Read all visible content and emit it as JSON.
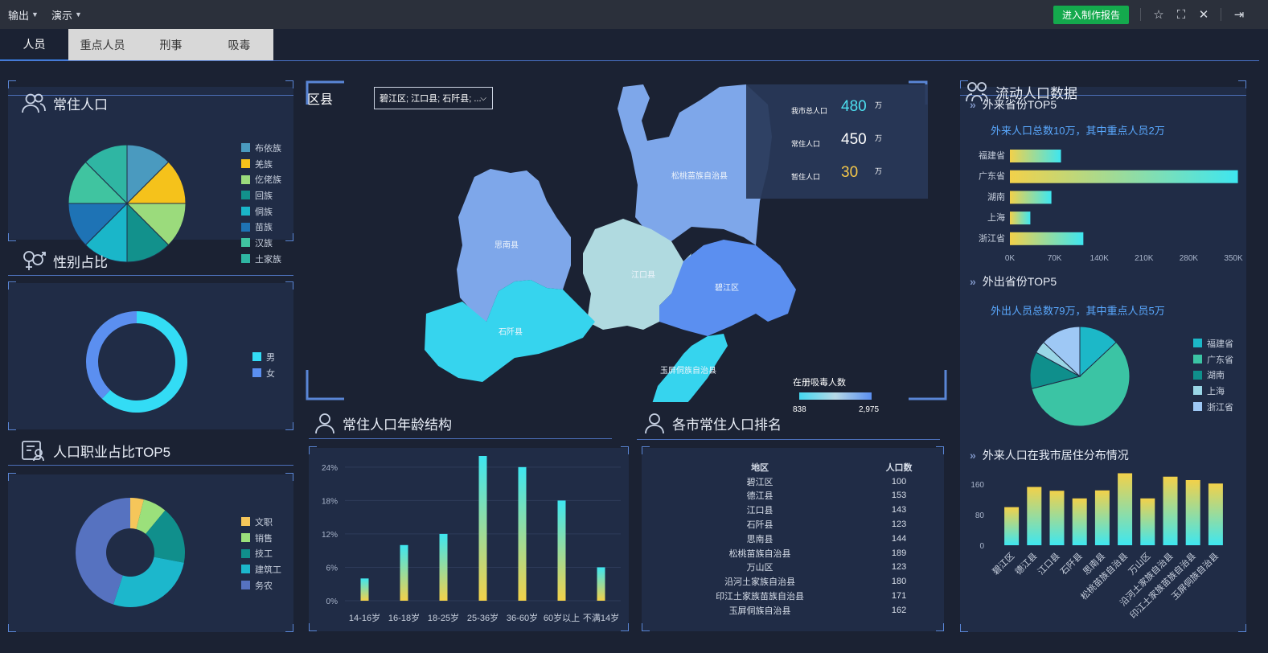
{
  "topbar": {
    "menus": [
      "输出",
      "演示"
    ],
    "report_button": "进入制作报告"
  },
  "tabs": [
    "人员",
    "重点人员",
    "刑事",
    "吸毒"
  ],
  "left": {
    "resident_title": "常住人口",
    "resident_legend": [
      "布依族",
      "羌族",
      "仡佬族",
      "回族",
      "侗族",
      "苗族",
      "汉族",
      "土家族"
    ],
    "resident_colors": [
      "#4a9abf",
      "#f5c21b",
      "#9bdb7c",
      "#12918c",
      "#1ab6c9",
      "#1e73b5",
      "#40c4a0",
      "#2fb6a3"
    ],
    "gender_title": "性别占比",
    "gender_legend": [
      "男",
      "女"
    ],
    "gender_colors": [
      "#33dcf5",
      "#5b8ff0"
    ],
    "occupation_title": "人口职业占比TOP5",
    "occupation_legend": [
      "文职",
      "销售",
      "技工",
      "建筑工",
      "务农"
    ],
    "occupation_colors": [
      "#f5c65a",
      "#9be07b",
      "#108f8c",
      "#1cb7cc",
      "#5672c0"
    ]
  },
  "map": {
    "label": "区县",
    "select_value": "碧江区; 江口县; 石阡县; ...",
    "stats": [
      {
        "label": "我市总人口",
        "value": "480",
        "unit": "万",
        "color": "#4de0f0"
      },
      {
        "label": "常住人口",
        "value": "450",
        "unit": "万",
        "color": "#ffffff"
      },
      {
        "label": "暂住人口",
        "value": "30",
        "unit": "万",
        "color": "#f5c84a"
      }
    ],
    "regions": [
      "松桃苗族自治县",
      "思南县",
      "江口县",
      "碧江区",
      "石阡县",
      "玉屏侗族自治县"
    ],
    "legend_title": "在册吸毒人数",
    "legend_min": "838",
    "legend_max": "2,975"
  },
  "age": {
    "title": "常住人口年龄结构"
  },
  "rank": {
    "title": "各市常住人口排名",
    "headers": [
      "地区",
      "人口数"
    ],
    "rows": [
      [
        "碧江区",
        "100"
      ],
      [
        "德江县",
        "153"
      ],
      [
        "江口县",
        "143"
      ],
      [
        "石阡县",
        "123"
      ],
      [
        "思南县",
        "144"
      ],
      [
        "松桃苗族自治县",
        "189"
      ],
      [
        "万山区",
        "123"
      ],
      [
        "沿河土家族自治县",
        "180"
      ],
      [
        "印江土家族苗族自治县",
        "171"
      ],
      [
        "玉屏侗族自治县",
        "162"
      ]
    ]
  },
  "right": {
    "title": "流动人口数据",
    "in_title": "外来省份TOP5",
    "in_note": "外来人口总数10万，其中重点人员2万",
    "out_title": "外出省份TOP5",
    "out_note": "外出人员总数79万，其中重点人员5万",
    "out_legend": [
      "福建省",
      "广东省",
      "湖南",
      "上海",
      "浙江省"
    ],
    "out_colors": [
      "#1cb8c8",
      "#3bc4a4",
      "#0f8f8c",
      "#9ad6e6",
      "#9ec8f5"
    ],
    "dist_title": "外来人口在我市居住分布情况"
  },
  "chart_data": [
    {
      "type": "pie",
      "title": "常住人口",
      "categories": [
        "布依族",
        "羌族",
        "仡佬族",
        "回族",
        "侗族",
        "苗族",
        "汉族",
        "土家族"
      ],
      "values": [
        1,
        1,
        1,
        1,
        1,
        1,
        1,
        1
      ]
    },
    {
      "type": "pie",
      "title": "性别占比",
      "categories": [
        "男",
        "女"
      ],
      "values": [
        62,
        38
      ]
    },
    {
      "type": "pie",
      "title": "人口职业占比TOP5",
      "categories": [
        "文职",
        "销售",
        "技工",
        "建筑工",
        "务农"
      ],
      "values": [
        4,
        7,
        17,
        27,
        45
      ]
    },
    {
      "type": "bar",
      "title": "常住人口年龄结构",
      "categories": [
        "14-16岁",
        "16-18岁",
        "18-25岁",
        "25-36岁",
        "36-60岁",
        "60岁以上",
        "不满14岁"
      ],
      "values": [
        4,
        10,
        12,
        26,
        24,
        18,
        6
      ],
      "yticks": [
        "0%",
        "6%",
        "12%",
        "18%",
        "24%"
      ],
      "ylim": [
        0,
        26
      ]
    },
    {
      "type": "bar",
      "title": "外来省份TOP5",
      "orientation": "horizontal",
      "categories": [
        "福建省",
        "广东省",
        "湖南",
        "上海",
        "浙江省"
      ],
      "values": [
        80000,
        357000,
        65000,
        32000,
        115000
      ],
      "xticks": [
        "0K",
        "70K",
        "140K",
        "210K",
        "280K",
        "350K"
      ],
      "xlim": [
        0,
        350000
      ]
    },
    {
      "type": "pie",
      "title": "外出省份TOP5",
      "categories": [
        "福建省",
        "广东省",
        "湖南",
        "上海",
        "浙江省"
      ],
      "values": [
        13,
        58,
        12,
        4,
        13
      ]
    },
    {
      "type": "bar",
      "title": "外来人口在我市居住分布情况",
      "categories": [
        "碧江区",
        "德江县",
        "江口县",
        "石阡县",
        "思南县",
        "松桃苗族自治县",
        "万山区",
        "沿河土家族自治县",
        "印江土家族苗族自治县",
        "玉屏侗族自治县"
      ],
      "values": [
        100,
        153,
        143,
        123,
        144,
        189,
        123,
        180,
        171,
        162
      ],
      "yticks": [
        "0",
        "80",
        "160"
      ],
      "ylim": [
        0,
        190
      ]
    }
  ]
}
